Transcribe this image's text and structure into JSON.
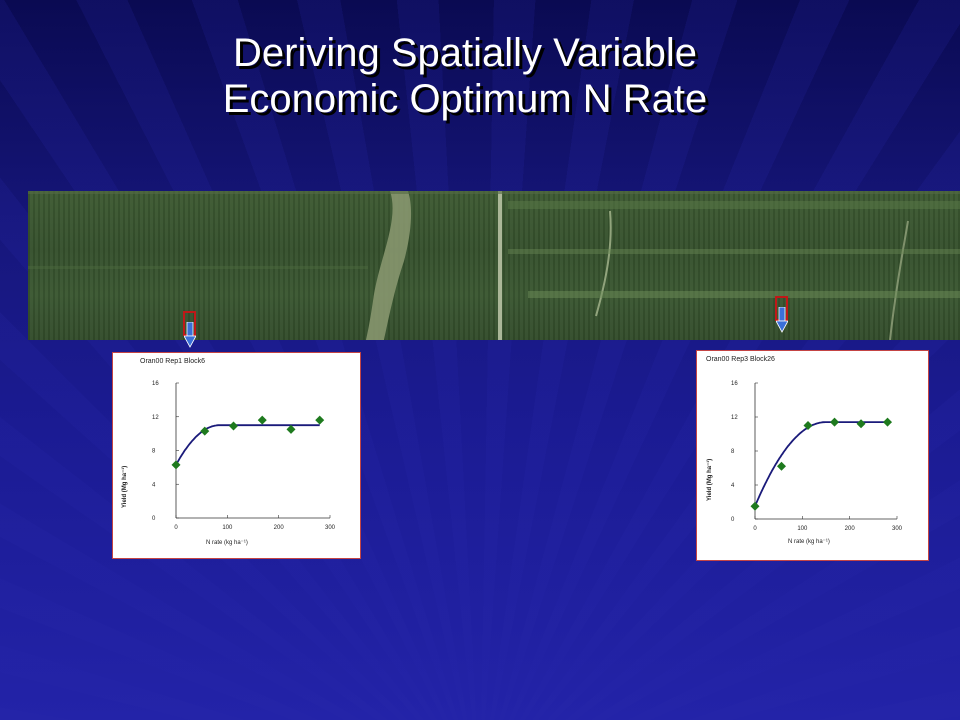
{
  "slide": {
    "title_line1": "Deriving Spatially Variable",
    "title_line2": "Economic Optimum N Rate"
  },
  "colors": {
    "background": "#1b1b8c",
    "title": "#ffffff",
    "marker": "#c01818",
    "arrow": "#3a6fd8",
    "curve": "#1a1a7a",
    "point": "#1e7a1e"
  },
  "chart_data": [
    {
      "type": "scatter",
      "title": "Oran00  Rep1  Block6",
      "xlabel": "N rate (kg ha⁻¹)",
      "ylabel": "Yield (Mg ha⁻¹)",
      "xlim": [
        0,
        300
      ],
      "ylim": [
        0,
        16
      ],
      "xticks": [
        0,
        100,
        200,
        300
      ],
      "yticks": [
        0,
        4,
        8,
        12,
        16
      ],
      "points": [
        {
          "x": 0,
          "y": 6.3
        },
        {
          "x": 56,
          "y": 10.3
        },
        {
          "x": 112,
          "y": 10.9
        },
        {
          "x": 168,
          "y": 11.6
        },
        {
          "x": 224,
          "y": 10.5
        },
        {
          "x": 280,
          "y": 11.6
        }
      ],
      "fit": {
        "model": "quadratic-plateau",
        "y0": 6.3,
        "plateau": 11.0,
        "join_x": 85
      }
    },
    {
      "type": "scatter",
      "title": "Oran00  Rep3  Block26",
      "xlabel": "N rate (kg ha⁻¹)",
      "ylabel": "Yield (Mg ha⁻¹)",
      "xlim": [
        0,
        300
      ],
      "ylim": [
        0,
        16
      ],
      "xticks": [
        0,
        100,
        200,
        300
      ],
      "yticks": [
        0,
        4,
        8,
        12,
        16
      ],
      "points": [
        {
          "x": 0,
          "y": 1.5
        },
        {
          "x": 56,
          "y": 6.2
        },
        {
          "x": 112,
          "y": 11.0
        },
        {
          "x": 168,
          "y": 11.4
        },
        {
          "x": 224,
          "y": 11.2
        },
        {
          "x": 280,
          "y": 11.4
        }
      ],
      "fit": {
        "model": "quadratic-plateau",
        "y0": 1.5,
        "plateau": 11.4,
        "join_x": 150
      }
    }
  ]
}
